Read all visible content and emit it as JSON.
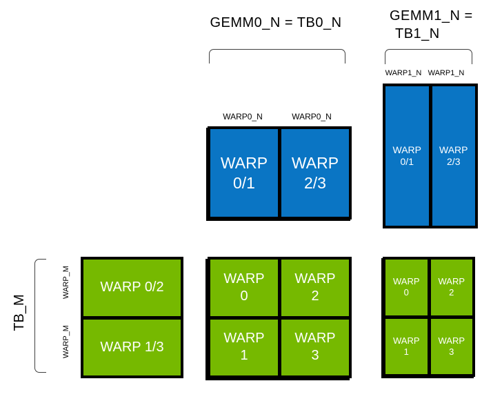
{
  "colors": {
    "accumulator_blue": "#0a75c4",
    "warp_green": "#76b900",
    "box_border": "#000000",
    "bracket_line": "#3f3f3f",
    "box_text": "#ffffff",
    "label_text": "#000000"
  },
  "headers": {
    "gemm0": "GEMM0_N = TB0_N",
    "gemm1_line1": "GEMM1_N =",
    "gemm1_line2": "TB1_N"
  },
  "row_labels": {
    "tb_m": "TB_M",
    "warp_m_top": "WARP_M",
    "warp_m_bottom": "WARP_M"
  },
  "col_labels": {
    "warp0_n_left": "WARP0_N",
    "warp0_n_right": "WARP0_N",
    "warp1_n_left": "WARP1_N",
    "warp1_n_right": "WARP1_N"
  },
  "blocks": {
    "gemm0_accum": {
      "cells": [
        {
          "line1": "WARP",
          "line2": "0/1"
        },
        {
          "line1": "WARP",
          "line2": "2/3"
        }
      ]
    },
    "gemm1_accum": {
      "cells": [
        {
          "line1": "WARP",
          "line2": "0/1"
        },
        {
          "line1": "WARP",
          "line2": "2/3"
        }
      ]
    },
    "tb_rows": {
      "cells": [
        {
          "label": "WARP 0/2"
        },
        {
          "label": "WARP 1/3"
        }
      ]
    },
    "gemm0_warps": {
      "cells": [
        {
          "line1": "WARP",
          "line2": "0"
        },
        {
          "line1": "WARP",
          "line2": "2"
        },
        {
          "line1": "WARP",
          "line2": "1"
        },
        {
          "line1": "WARP",
          "line2": "3"
        }
      ]
    },
    "gemm1_warps": {
      "cells": [
        {
          "line1": "WARP",
          "line2": "0"
        },
        {
          "line1": "WARP",
          "line2": "2"
        },
        {
          "line1": "WARP",
          "line2": "1"
        },
        {
          "line1": "WARP",
          "line2": "3"
        }
      ]
    }
  }
}
